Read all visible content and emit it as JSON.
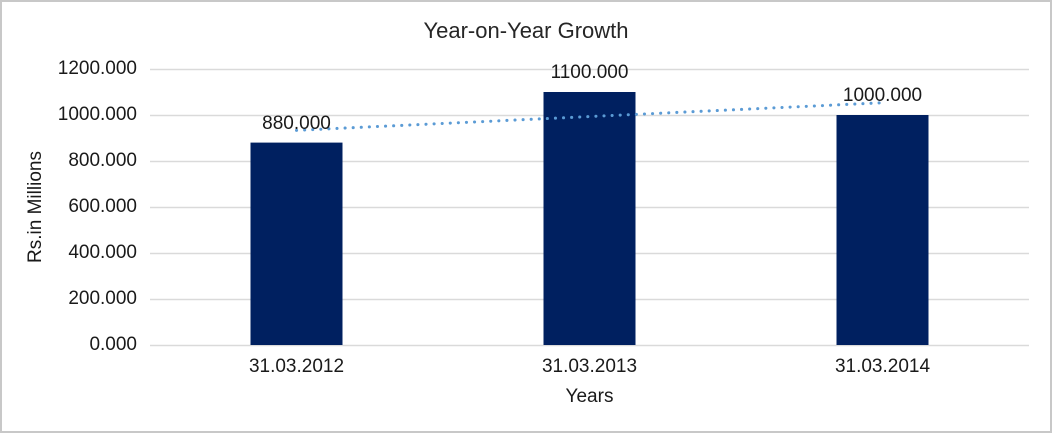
{
  "chart_data": {
    "type": "bar",
    "title": "Year-on-Year Growth",
    "xlabel": "Years",
    "ylabel": "Rs.in Millions",
    "categories": [
      "31.03.2012",
      "31.03.2013",
      "31.03.2014"
    ],
    "values": [
      880,
      1100,
      1000
    ],
    "data_labels": [
      "880.000",
      "1100.000",
      "1000.000"
    ],
    "ytick_values": [
      0,
      200,
      400,
      600,
      800,
      1000,
      1200
    ],
    "ytick_labels": [
      "0.000",
      "200.000",
      "400.000",
      "600.000",
      "800.000",
      "1000.000",
      "1200.000"
    ],
    "ylim": [
      0,
      1200
    ],
    "grid": "horizontal",
    "legend": "none",
    "bar_color": "#002060",
    "gridline_color": "#dadada",
    "trendline": {
      "type": "linear",
      "style": "dotted",
      "color": "#5B9BD5",
      "start_value": 933.3,
      "end_value": 1053.3
    }
  }
}
